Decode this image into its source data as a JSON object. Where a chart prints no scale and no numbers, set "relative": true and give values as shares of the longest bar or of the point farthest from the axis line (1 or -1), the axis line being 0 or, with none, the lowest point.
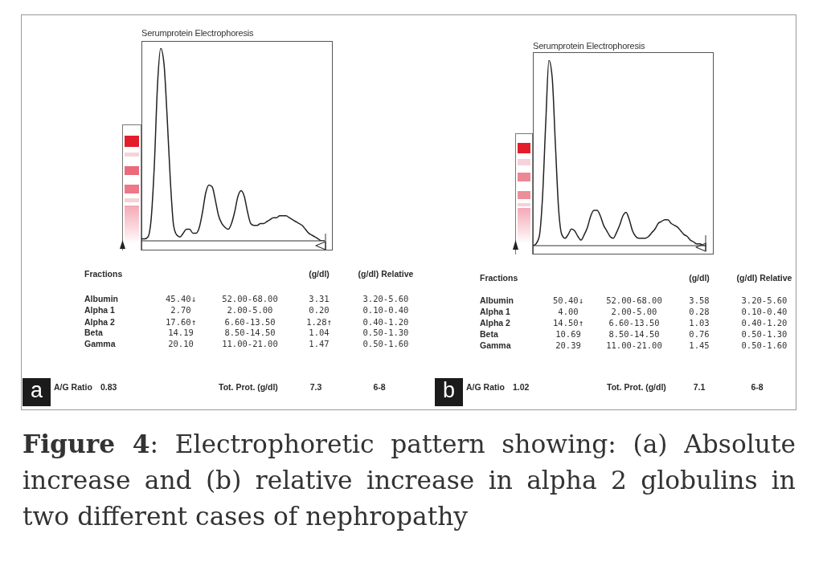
{
  "chart_data": [
    {
      "type": "line",
      "title": "Serumprotein Electrophoresis",
      "relative": true,
      "categories": [
        null,
        null,
        null,
        null,
        null,
        null,
        null,
        null,
        null,
        null,
        null,
        null,
        null,
        null,
        null,
        null,
        null,
        null,
        null,
        null,
        null,
        null,
        null,
        null,
        null,
        null,
        null,
        null,
        null,
        null,
        null,
        null,
        null,
        null,
        null,
        null,
        null,
        null,
        null,
        null,
        null,
        null,
        null,
        null,
        null,
        null,
        null,
        null,
        null,
        null,
        null,
        null,
        null,
        null,
        null,
        null,
        null,
        null
      ],
      "values": [
        0.01,
        0.01,
        0.02,
        0.11,
        0.39,
        0.81,
        1,
        0.92,
        0.64,
        0.31,
        0.08,
        0.03,
        0.02,
        0.04,
        0.06,
        0.06,
        0.04,
        0.04,
        0.07,
        0.15,
        0.25,
        0.29,
        0.28,
        0.21,
        0.13,
        0.09,
        0.07,
        0.06,
        0.09,
        0.15,
        0.23,
        0.26,
        0.23,
        0.15,
        0.09,
        0.08,
        0.08,
        0.09,
        0.09,
        0.1,
        0.11,
        0.12,
        0.12,
        0.13,
        0.13,
        0.13,
        0.12,
        0.11,
        0.1,
        0.09,
        0.08,
        0.06,
        0.04,
        0.03,
        0.02,
        0.01,
        0,
        0
      ],
      "color": "#222222",
      "annotations": [
        "a",
        "Fractions",
        "(g/dl)",
        "(g/dl) Relative",
        "Albumin",
        "45.40↓",
        "52.00-68.00",
        "3.31",
        "3.20-5.60",
        "Alpha 1",
        "2.70",
        "2.00-5.00",
        "0.20",
        "0.10-0.40",
        "Alpha 2",
        "17.60↑",
        "6.60-13.50",
        "1.28↑",
        "0.40-1.20",
        "Beta",
        "14.19",
        "8.50-14.50",
        "1.04",
        "0.50-1.30",
        "Gamma",
        "20.10",
        "11.00-21.00",
        "1.47",
        "0.50-1.60",
        "A/G Ratio",
        "0.83",
        "Tot. Prot. (g/dl)",
        "7.3",
        "6-8",
        "Figure 4: Electrophoretic pattern showing: (a) Absolute increase and (b) relative increase in alpha 2 globulins in two different cases of nephropathy"
      ]
    },
    {
      "type": "line",
      "title": "Serumprotein Electrophoresis",
      "relative": true,
      "categories": [
        null,
        null,
        null,
        null,
        null,
        null,
        null,
        null,
        null,
        null,
        null,
        null,
        null,
        null,
        null,
        null,
        null,
        null,
        null,
        null,
        null,
        null,
        null,
        null,
        null,
        null,
        null,
        null,
        null,
        null,
        null,
        null,
        null,
        null,
        null,
        null,
        null,
        null,
        null,
        null,
        null,
        null,
        null,
        null,
        null,
        null,
        null,
        null,
        null,
        null,
        null,
        null,
        null,
        null,
        null
      ],
      "values": [
        0,
        0.01,
        0.05,
        0.26,
        0.66,
        1,
        0.91,
        0.55,
        0.2,
        0.06,
        0.04,
        0.06,
        0.09,
        0.08,
        0.05,
        0.03,
        0.06,
        0.1,
        0.16,
        0.19,
        0.19,
        0.16,
        0.11,
        0.08,
        0.05,
        0.04,
        0.07,
        0.11,
        0.16,
        0.18,
        0.14,
        0.08,
        0.05,
        0.04,
        0.04,
        0.04,
        0.05,
        0.07,
        0.09,
        0.12,
        0.13,
        0.14,
        0.14,
        0.12,
        0.11,
        0.1,
        0.08,
        0.06,
        0.05,
        0.03,
        0.02,
        0.01,
        0.01,
        0,
        0
      ],
      "color": "#222222",
      "annotations": [
        "b",
        "Fractions",
        "(g/dl)",
        "(g/dl) Relative",
        "Albumin",
        "50.40↓",
        "52.00-68.00",
        "3.58",
        "3.20-5.60",
        "Alpha 1",
        "4.00",
        "2.00-5.00",
        "0.28",
        "0.10-0.40",
        "Alpha 2",
        "14.50↑",
        "6.60-13.50",
        "1.03",
        "0.40-1.20",
        "Beta",
        "10.69",
        "8.50-14.50",
        "0.76",
        "0.50-1.30",
        "Gamma",
        "20.39",
        "11.00-21.00",
        "1.45",
        "0.50-1.60",
        "A/G Ratio",
        "1.02",
        "Tot. Prot. (g/dl)",
        "7.1",
        "6-8"
      ]
    }
  ]
}
